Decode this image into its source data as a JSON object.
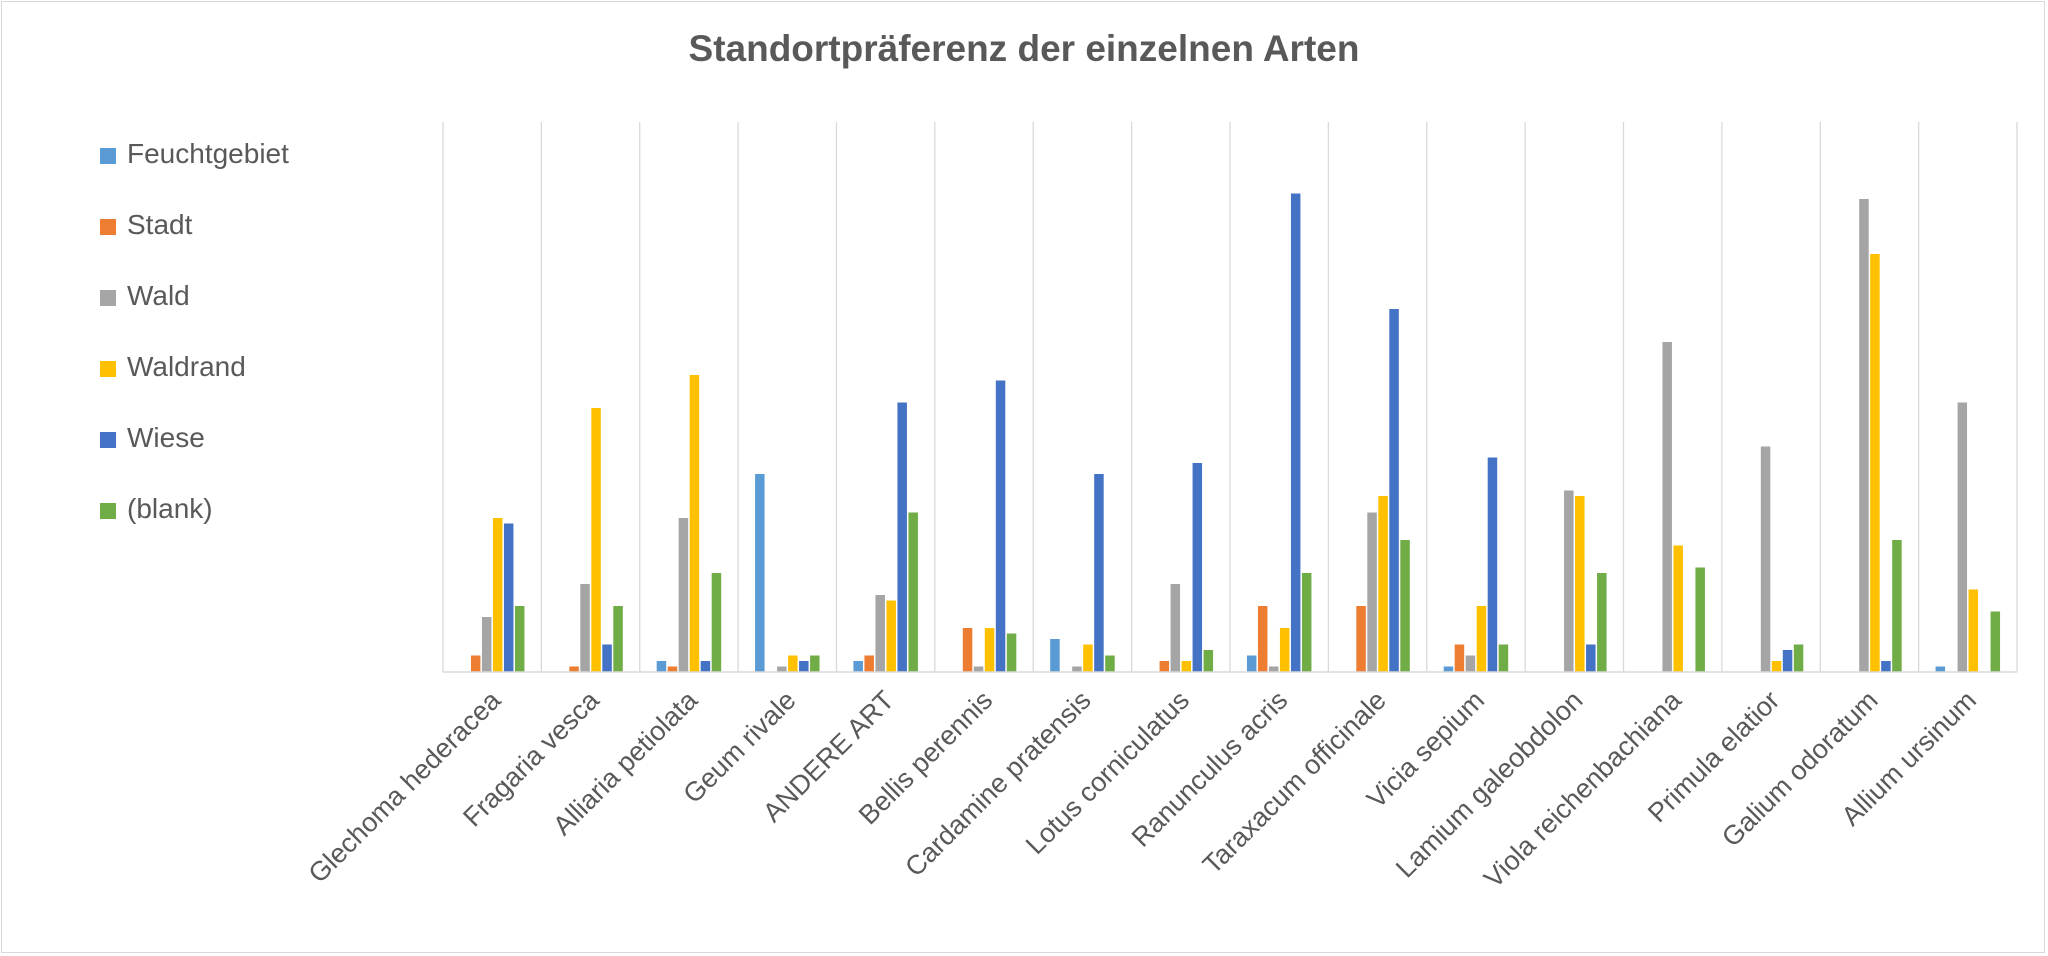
{
  "chart_data": {
    "type": "bar",
    "title": "Standortpräferenz der einzelnen Arten",
    "xlabel": "",
    "ylabel": "",
    "legend_position": "left",
    "grid": "vertical category separators",
    "categories": [
      "Glechoma hederacea",
      "Fragaria vesca",
      "Alliaria petiolata",
      "Geum rivale",
      "ANDERE ART",
      "Bellis perennis",
      "Cardamine pratensis",
      "Lotus corniculatus",
      "Ranunculus acris",
      "Taraxacum officinale",
      "Vicia sepium",
      "Lamium galeobdolon",
      "Viola reichenbachiana",
      "Primula elatior",
      "Galium odoratum",
      "Allium ursinum"
    ],
    "ylim": [
      0,
      100
    ],
    "series": [
      {
        "name": "Feuchtgebiet",
        "color": "#5b9bd5",
        "values": [
          0,
          0,
          2,
          36,
          2,
          0,
          6,
          0,
          3,
          0,
          1,
          0,
          0,
          0,
          0,
          1
        ]
      },
      {
        "name": "Stadt",
        "color": "#ed7d31",
        "values": [
          3,
          1,
          1,
          0,
          3,
          8,
          0,
          2,
          12,
          12,
          5,
          0,
          0,
          0,
          0,
          0
        ]
      },
      {
        "name": "Wald",
        "color": "#a5a5a5",
        "values": [
          10,
          16,
          28,
          1,
          14,
          1,
          1,
          16,
          1,
          29,
          3,
          33,
          60,
          41,
          86,
          49
        ]
      },
      {
        "name": "Waldrand",
        "color": "#ffc000",
        "values": [
          28,
          48,
          54,
          3,
          13,
          8,
          5,
          2,
          8,
          32,
          12,
          32,
          23,
          2,
          76,
          15
        ]
      },
      {
        "name": "Wiese",
        "color": "#4472c4",
        "values": [
          27,
          5,
          2,
          2,
          49,
          53,
          36,
          38,
          87,
          66,
          39,
          5,
          0,
          4,
          2,
          0
        ]
      },
      {
        "name": "(blank)",
        "color": "#70ad47",
        "values": [
          12,
          12,
          18,
          3,
          29,
          7,
          3,
          4,
          18,
          24,
          5,
          18,
          19,
          5,
          24,
          11
        ]
      }
    ]
  }
}
